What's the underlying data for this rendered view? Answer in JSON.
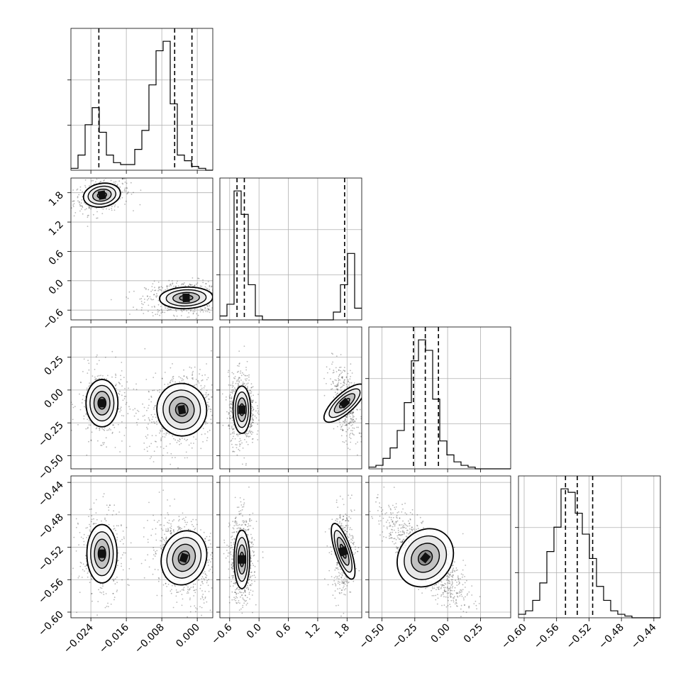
{
  "chart_data": {
    "type": "corner",
    "grid": true,
    "parameters": [
      {
        "index": 0,
        "range": [
          -0.0285,
          0.0035
        ],
        "ticks": [
          -0.024,
          -0.016,
          -0.008,
          0.0
        ],
        "tick_labels": [
          "−0.024",
          "−0.016",
          "−0.008",
          "0.000"
        ],
        "quantiles": [
          -0.0222,
          -0.0051,
          -0.0012
        ]
      },
      {
        "index": 1,
        "range": [
          -0.8,
          2.1
        ],
        "ticks": [
          -0.6,
          0.0,
          0.6,
          1.2,
          1.8
        ],
        "tick_labels": [
          "−0.6",
          "0.0",
          "0.6",
          "1.2",
          "1.8"
        ],
        "quantiles": [
          -0.45,
          -0.3,
          1.75
        ]
      },
      {
        "index": 2,
        "range": [
          -0.6,
          0.48
        ],
        "ticks": [
          -0.5,
          -0.25,
          0.0,
          0.25
        ],
        "tick_labels": [
          "−0.50",
          "−0.25",
          "0.00",
          "0.25"
        ],
        "quantiles": [
          -0.26,
          -0.17,
          -0.07
        ]
      },
      {
        "index": 3,
        "range": [
          -0.607,
          -0.432
        ],
        "ticks": [
          -0.6,
          -0.56,
          -0.52,
          -0.48,
          -0.44
        ],
        "tick_labels": [
          "−0.60",
          "−0.56",
          "−0.52",
          "−0.48",
          "−0.44"
        ],
        "quantiles": [
          -0.549,
          -0.5345,
          -0.5155
        ]
      }
    ],
    "histograms": [
      {
        "param": 0,
        "bin_edges_start": -0.0285,
        "bin_width": 0.0016,
        "counts": [
          1,
          8,
          24,
          33,
          20,
          8,
          4,
          3,
          3,
          11,
          21,
          45,
          63,
          68,
          35,
          8,
          5,
          2,
          1,
          0
        ]
      },
      {
        "param": 1,
        "bin_edges_start": -0.8,
        "bin_width": 0.145,
        "counts": [
          1,
          4,
          33,
          27,
          9,
          1,
          0,
          0,
          0,
          0,
          0,
          0,
          0,
          0,
          0,
          0,
          2,
          9,
          17,
          3
        ]
      },
      {
        "param": 2,
        "bin_edges_start": -0.6,
        "bin_width": 0.054,
        "counts": [
          0.5,
          1,
          3,
          6,
          11,
          19,
          31,
          37,
          34,
          20,
          8,
          4,
          2,
          1,
          0.5,
          0,
          0,
          0,
          0,
          0
        ]
      },
      {
        "param": 3,
        "bin_edges_start": -0.607,
        "bin_width": 0.00875,
        "counts": [
          1,
          2,
          5,
          10,
          19,
          26,
          37,
          36,
          30,
          24,
          17,
          9,
          5,
          2,
          1,
          0.5,
          0,
          0,
          0,
          0
        ]
      }
    ],
    "density_blobs": [
      {
        "pair": [
          0,
          1
        ],
        "blobs": [
          {
            "cx": -0.0215,
            "cy": 1.75,
            "sx": 0.0021,
            "sy": 0.12,
            "weight": 0.35,
            "corr": 0.3
          },
          {
            "cx": -0.0025,
            "cy": -0.35,
            "sx": 0.003,
            "sy": 0.11,
            "weight": 0.65,
            "corr": 0.1
          }
        ]
      },
      {
        "pair": [
          0,
          2
        ],
        "blobs": [
          {
            "cx": -0.0215,
            "cy": -0.1,
            "sx": 0.0018,
            "sy": 0.09,
            "weight": 0.35,
            "corr": 0.0
          },
          {
            "cx": -0.0035,
            "cy": -0.15,
            "sx": 0.0028,
            "sy": 0.1,
            "weight": 0.65,
            "corr": 0.2
          }
        ]
      },
      {
        "pair": [
          1,
          2
        ],
        "blobs": [
          {
            "cx": -0.35,
            "cy": -0.15,
            "sx": 0.09,
            "sy": 0.09,
            "weight": 0.65,
            "corr": 0.0
          },
          {
            "cx": 1.75,
            "cy": -0.1,
            "sx": 0.1,
            "sy": 0.1,
            "weight": 0.35,
            "corr": -0.5
          }
        ]
      },
      {
        "pair": [
          0,
          3
        ],
        "blobs": [
          {
            "cx": -0.0215,
            "cy": -0.528,
            "sx": 0.0017,
            "sy": 0.018,
            "weight": 0.35,
            "corr": 0.0
          },
          {
            "cx": -0.003,
            "cy": -0.533,
            "sx": 0.0025,
            "sy": 0.017,
            "weight": 0.65,
            "corr": -0.3
          }
        ]
      },
      {
        "pair": [
          1,
          3
        ],
        "blobs": [
          {
            "cx": -0.35,
            "cy": -0.535,
            "sx": 0.08,
            "sy": 0.018,
            "weight": 0.65,
            "corr": 0.0
          },
          {
            "cx": 1.72,
            "cy": -0.525,
            "sx": 0.08,
            "sy": 0.018,
            "weight": 0.35,
            "corr": 0.1
          }
        ]
      },
      {
        "pair": [
          2,
          3
        ],
        "blobs": [
          {
            "cx": -0.17,
            "cy": -0.533,
            "sx": 0.1,
            "sy": 0.019,
            "weight": 1.0,
            "corr": -0.8
          }
        ]
      }
    ]
  }
}
